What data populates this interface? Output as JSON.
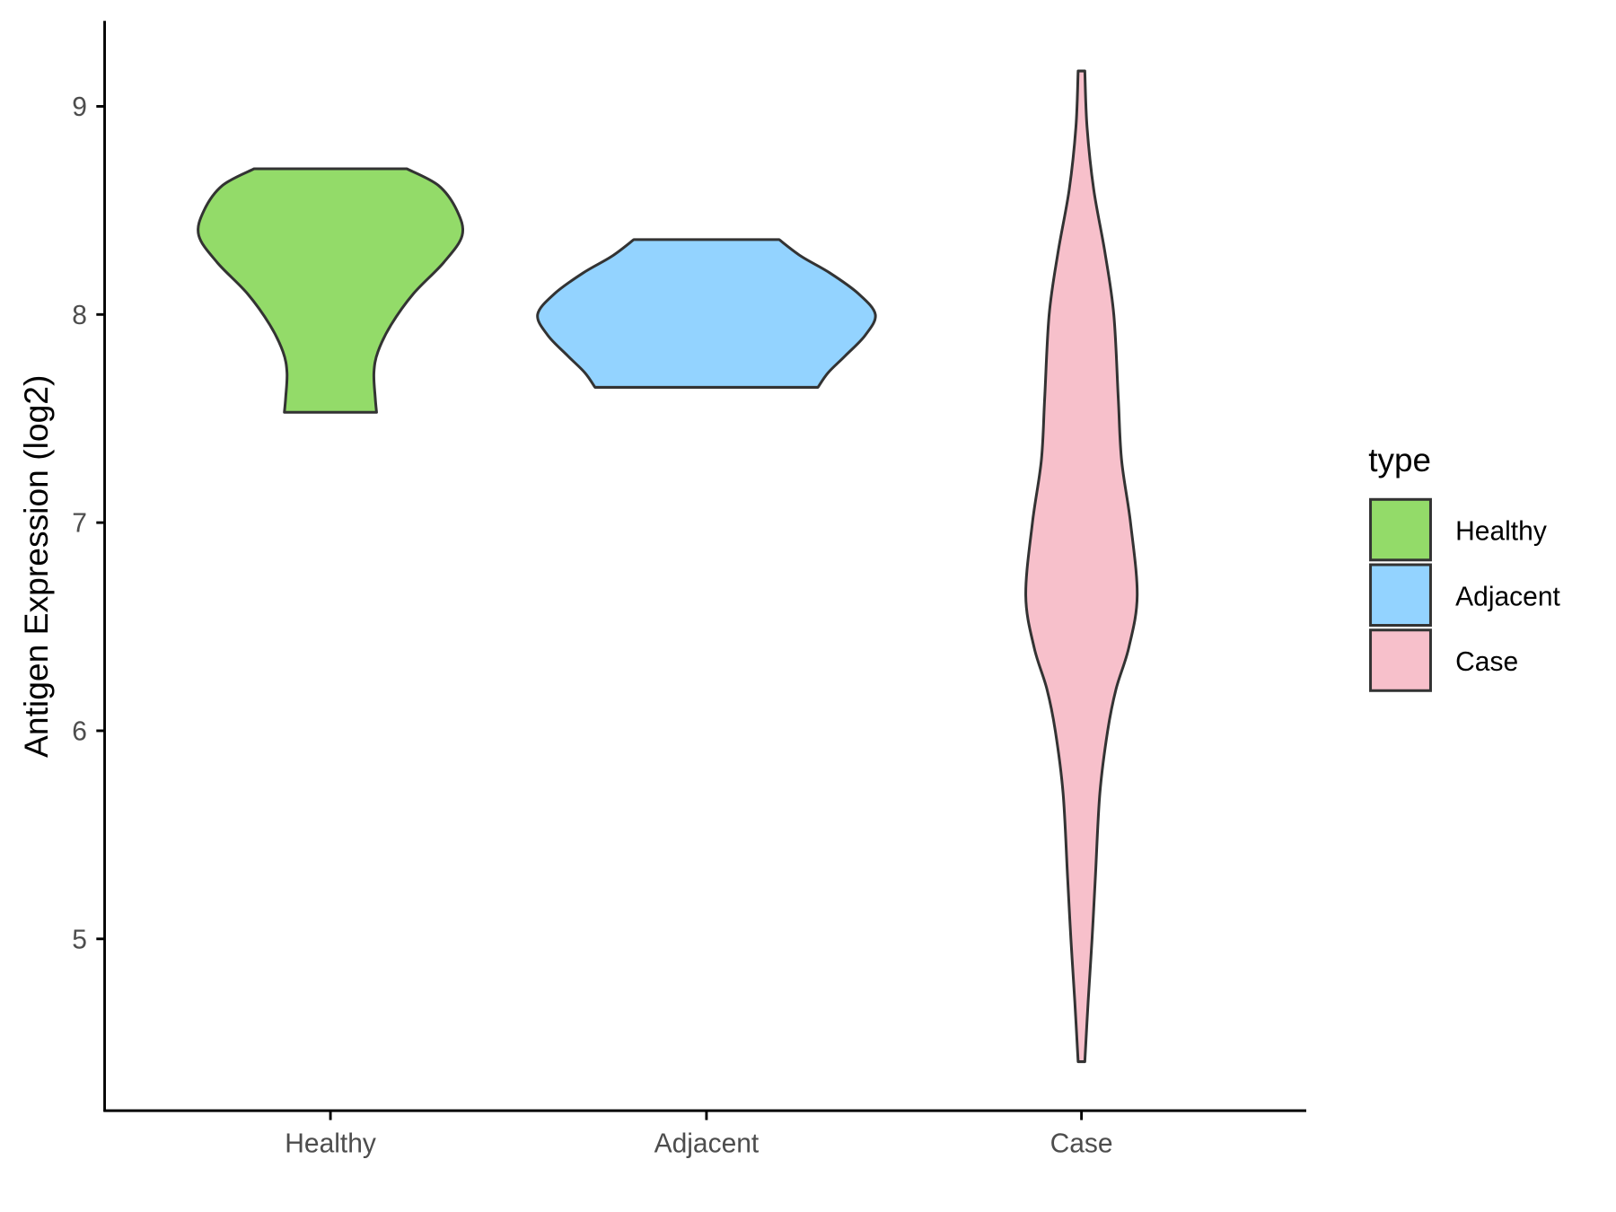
{
  "chart_data": {
    "type": "violin",
    "title": "",
    "xlabel": "",
    "ylabel": "Antigen Expression (log2)",
    "ylim": [
      4.1,
      9.5
    ],
    "yticks": [
      5,
      6,
      7,
      8,
      9
    ],
    "grid": false,
    "categories": [
      "Healthy",
      "Adjacent",
      "Case"
    ],
    "legend": {
      "title": "type",
      "placement": "right",
      "entries": [
        {
          "label": "Healthy",
          "color": "#93DB69"
        },
        {
          "label": "Adjacent",
          "color": "#93D3FF"
        },
        {
          "label": "Case",
          "color": "#F7C0CB"
        }
      ]
    },
    "series": [
      {
        "name": "Healthy",
        "color": "#93DB69",
        "relative_max_width": 0.78,
        "min": 7.53,
        "max": 8.7,
        "profile": [
          [
            8.7,
            0.58
          ],
          [
            8.62,
            0.82
          ],
          [
            8.5,
            0.96
          ],
          [
            8.38,
            1.0
          ],
          [
            8.25,
            0.86
          ],
          [
            8.1,
            0.63
          ],
          [
            7.95,
            0.46
          ],
          [
            7.82,
            0.36
          ],
          [
            7.72,
            0.33
          ],
          [
            7.6,
            0.34
          ],
          [
            7.53,
            0.35
          ]
        ]
      },
      {
        "name": "Adjacent",
        "color": "#93D3FF",
        "relative_max_width": 1.0,
        "min": 7.65,
        "max": 8.36,
        "profile": [
          [
            8.36,
            0.43
          ],
          [
            8.28,
            0.56
          ],
          [
            8.2,
            0.73
          ],
          [
            8.1,
            0.9
          ],
          [
            8.0,
            1.0
          ],
          [
            7.9,
            0.94
          ],
          [
            7.8,
            0.82
          ],
          [
            7.72,
            0.72
          ],
          [
            7.65,
            0.66
          ]
        ]
      },
      {
        "name": "Case",
        "color": "#F7C0CB",
        "relative_max_width": 0.33,
        "min": 4.41,
        "max": 9.17,
        "profile": [
          [
            9.17,
            0.06
          ],
          [
            8.9,
            0.1
          ],
          [
            8.6,
            0.22
          ],
          [
            8.3,
            0.42
          ],
          [
            8.0,
            0.58
          ],
          [
            7.6,
            0.66
          ],
          [
            7.3,
            0.72
          ],
          [
            7.0,
            0.88
          ],
          [
            6.65,
            1.0
          ],
          [
            6.4,
            0.85
          ],
          [
            6.2,
            0.62
          ],
          [
            6.0,
            0.47
          ],
          [
            5.7,
            0.33
          ],
          [
            5.3,
            0.25
          ],
          [
            5.0,
            0.19
          ],
          [
            4.7,
            0.12
          ],
          [
            4.41,
            0.06
          ]
        ]
      }
    ]
  }
}
